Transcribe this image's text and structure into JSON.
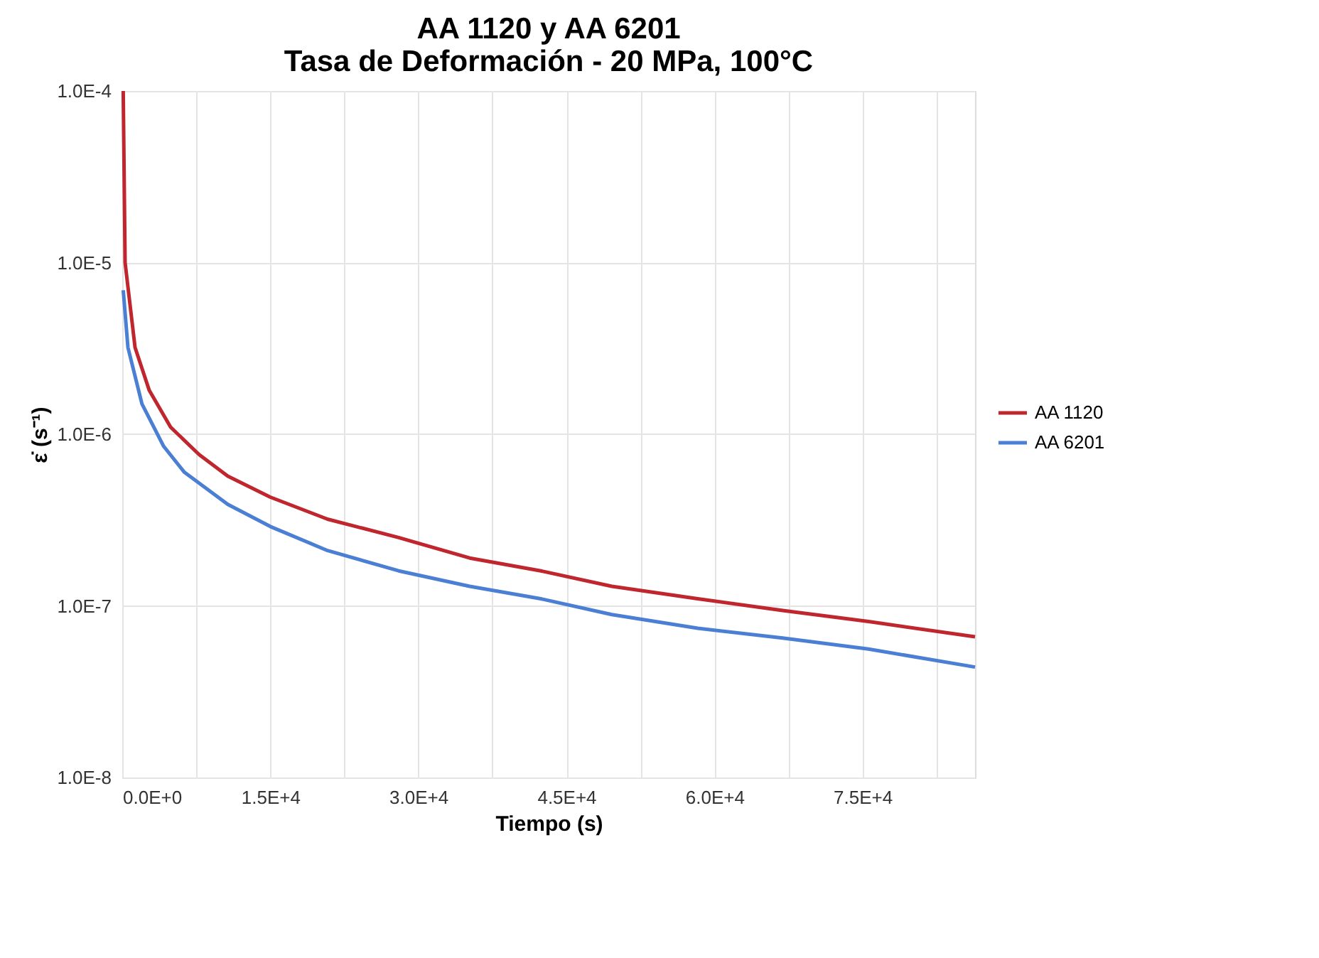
{
  "chart_data": {
    "type": "line",
    "title": "AA 1120 y AA 6201\nTasa de Deformación - 20 MPa, 100°C",
    "xlabel": "Tiempo (s)",
    "ylabel": "ε̇ (s⁻¹)",
    "log": "y",
    "grid": true,
    "legend": "right",
    "marker": "none",
    "line_style": "solid",
    "xlim": [
      0,
      86400
    ],
    "ylim": [
      1e-08,
      0.0001
    ],
    "xticks": [
      {
        "value": 0,
        "label": "0.0E+0"
      },
      {
        "value": 7500,
        "label": null
      },
      {
        "value": 15000,
        "label": "1.5E+4"
      },
      {
        "value": 22500,
        "label": null
      },
      {
        "value": 30000,
        "label": "3.0E+4"
      },
      {
        "value": 37500,
        "label": null
      },
      {
        "value": 45000,
        "label": "4.5E+4"
      },
      {
        "value": 52500,
        "label": null
      },
      {
        "value": 60000,
        "label": "6.0E+4"
      },
      {
        "value": 67500,
        "label": null
      },
      {
        "value": 75000,
        "label": "7.5E+4"
      },
      {
        "value": 82500,
        "label": null
      }
    ],
    "yticks": [
      {
        "value": 1e-08,
        "label": "1.0E-8"
      },
      {
        "value": 1e-07,
        "label": "1.0E-7"
      },
      {
        "value": 1e-06,
        "label": "1.0E-6"
      },
      {
        "value": 1e-05,
        "label": "1.0E-5"
      },
      {
        "value": 0.0001,
        "label": "1.0E-4"
      }
    ],
    "x": [
      100,
      290,
      1300,
      2740,
      4900,
      7800,
      10700,
      15000,
      20800,
      28000,
      35200,
      42400,
      49600,
      58300,
      66900,
      75600,
      86400
    ],
    "series": [
      {
        "name": "AA 1120",
        "color": "#c0262d",
        "values": [
          0.0001,
          1e-05,
          3.2e-06,
          1.8e-06,
          1.1e-06,
          7.6e-07,
          5.7e-07,
          4.3e-07,
          3.2e-07,
          2.5e-07,
          1.9e-07,
          1.6e-07,
          1.3e-07,
          1.1e-07,
          9.4e-08,
          8.1e-08,
          6.6e-08
        ]
      },
      {
        "name": "AA 6201",
        "color": "#4a7fd4",
        "x": [
          100,
          580,
          2000,
          4200,
          6300,
          10700,
          15000,
          20800,
          28000,
          35200,
          42400,
          49600,
          58300,
          66900,
          75600,
          86400
        ],
        "values": [
          6.9e-06,
          3.2e-06,
          1.5e-06,
          8.5e-07,
          6e-07,
          3.9e-07,
          2.9e-07,
          2.1e-07,
          1.6e-07,
          1.3e-07,
          1.1e-07,
          8.9e-08,
          7.4e-08,
          6.5e-08,
          5.6e-08,
          4.4e-08
        ]
      }
    ]
  }
}
